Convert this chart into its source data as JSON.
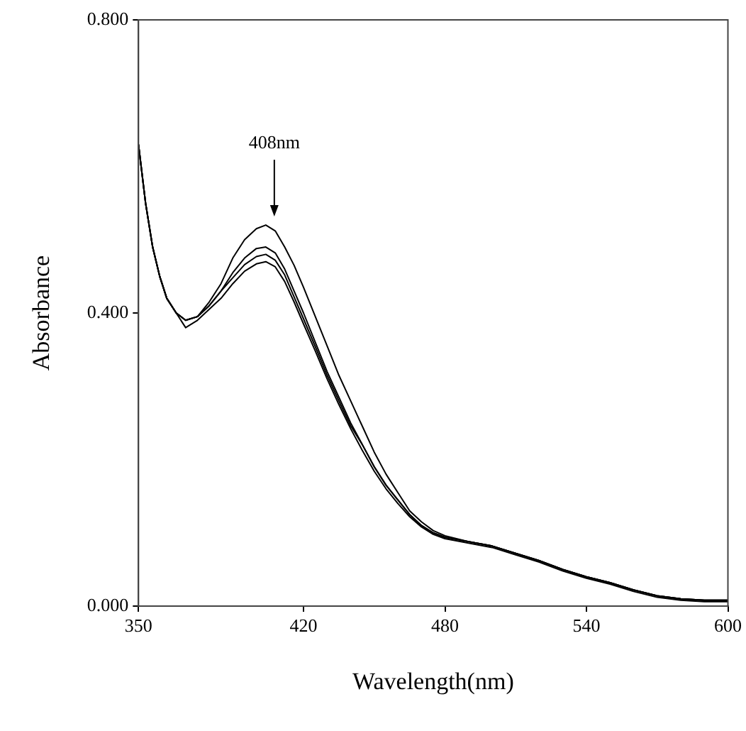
{
  "chart_data": {
    "type": "line",
    "xlabel": "Wavelength(nm)",
    "ylabel": "Absorbance",
    "x": [
      350,
      353,
      356,
      359,
      362,
      366,
      370,
      375,
      380,
      385,
      390,
      395,
      400,
      404,
      408,
      412,
      416,
      420,
      425,
      430,
      435,
      440,
      445,
      450,
      455,
      460,
      465,
      470,
      475,
      480,
      490,
      500,
      510,
      520,
      530,
      540,
      550,
      560,
      570,
      580,
      590,
      600
    ],
    "series": [
      {
        "color": "#000000",
        "values": [
          0.63,
          0.55,
          0.49,
          0.45,
          0.42,
          0.4,
          0.39,
          0.395,
          0.415,
          0.44,
          0.475,
          0.5,
          0.515,
          0.52,
          0.512,
          0.49,
          0.465,
          0.435,
          0.395,
          0.355,
          0.315,
          0.28,
          0.245,
          0.21,
          0.18,
          0.155,
          0.13,
          0.115,
          0.103,
          0.096,
          0.088,
          0.082,
          0.072,
          0.062,
          0.05,
          0.04,
          0.032,
          0.022,
          0.014,
          0.01,
          0.008,
          0.008
        ]
      },
      {
        "color": "#000000",
        "values": [
          0.63,
          0.55,
          0.49,
          0.45,
          0.42,
          0.4,
          0.39,
          0.395,
          0.41,
          0.43,
          0.455,
          0.475,
          0.488,
          0.49,
          0.482,
          0.46,
          0.43,
          0.4,
          0.36,
          0.32,
          0.285,
          0.25,
          0.22,
          0.19,
          0.165,
          0.145,
          0.125,
          0.11,
          0.1,
          0.094,
          0.088,
          0.082,
          0.072,
          0.062,
          0.05,
          0.04,
          0.032,
          0.022,
          0.014,
          0.01,
          0.008,
          0.008
        ]
      },
      {
        "color": "#000000",
        "values": [
          0.63,
          0.55,
          0.49,
          0.45,
          0.42,
          0.4,
          0.39,
          0.395,
          0.41,
          0.43,
          0.448,
          0.466,
          0.477,
          0.48,
          0.472,
          0.452,
          0.422,
          0.392,
          0.354,
          0.315,
          0.28,
          0.246,
          0.22,
          0.19,
          0.165,
          0.145,
          0.125,
          0.11,
          0.1,
          0.094,
          0.088,
          0.082,
          0.072,
          0.062,
          0.05,
          0.04,
          0.032,
          0.022,
          0.014,
          0.01,
          0.008,
          0.008
        ]
      },
      {
        "color": "#000000",
        "values": [
          0.63,
          0.55,
          0.49,
          0.45,
          0.42,
          0.4,
          0.38,
          0.39,
          0.405,
          0.42,
          0.44,
          0.457,
          0.467,
          0.47,
          0.463,
          0.443,
          0.415,
          0.385,
          0.348,
          0.31,
          0.275,
          0.242,
          0.212,
          0.184,
          0.16,
          0.14,
          0.122,
          0.108,
          0.098,
          0.092,
          0.086,
          0.08,
          0.07,
          0.06,
          0.048,
          0.038,
          0.03,
          0.02,
          0.012,
          0.008,
          0.006,
          0.006
        ]
      }
    ],
    "xlim": [
      350,
      600
    ],
    "xticks": [
      350,
      420,
      480,
      540,
      600
    ],
    "ylim": [
      0,
      0.8
    ],
    "yticks": [
      {
        "value": 0,
        "label": "0.000"
      },
      {
        "value": 0.4,
        "label": "0.400"
      },
      {
        "value": 0.8,
        "label": "0.800"
      }
    ],
    "annotations": [
      "408nm"
    ],
    "grid": false,
    "legend": false,
    "marker": "none",
    "line_style": "solid"
  }
}
